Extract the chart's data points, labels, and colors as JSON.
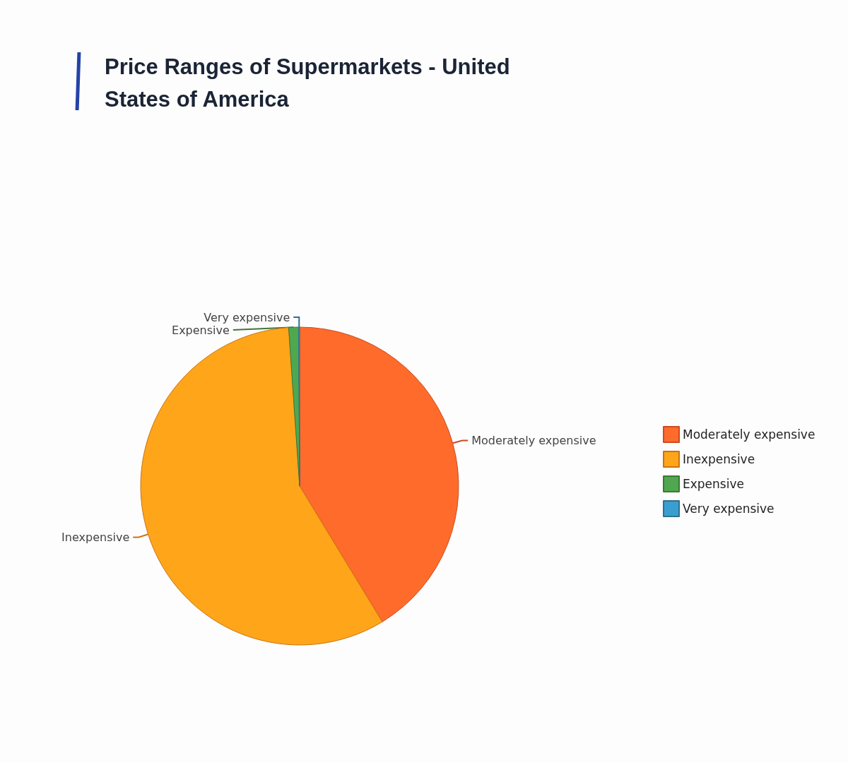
{
  "chart_data": {
    "type": "pie",
    "title": "Price Ranges of Supermarkets - United States of America",
    "categories": [
      "Moderately expensive",
      "Inexpensive",
      "Expensive",
      "Very expensive"
    ],
    "values": [
      41.3,
      57.6,
      1.0,
      0.1
    ],
    "colors": [
      "#ff6b2b",
      "#ffa51a",
      "#4fa84f",
      "#3a9fd0"
    ],
    "legend": "right"
  }
}
